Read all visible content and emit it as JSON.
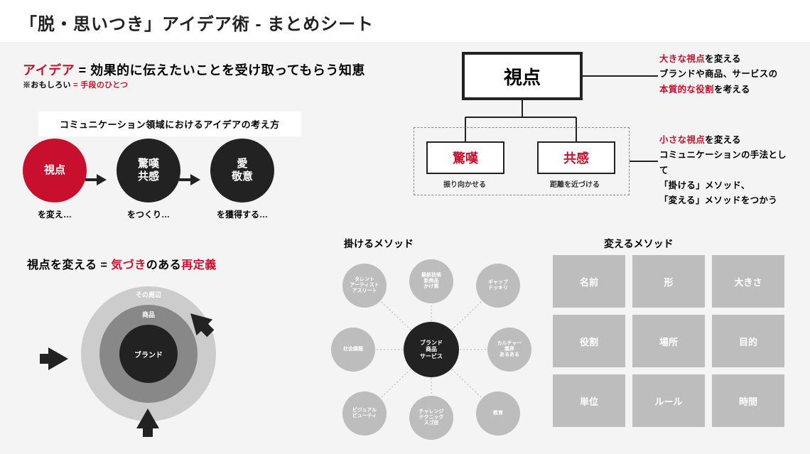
{
  "title": "「脱・思いつき」アイデア術 - まとめシート",
  "def1": {
    "a": "アイデア",
    "b": " = 効果的に",
    "c": "伝えたいことを受け取ってもらう",
    "d": "知恵"
  },
  "def2": {
    "a": "※おもしろい",
    "b": " = 手段のひとつ"
  },
  "comms_label": "コミュニケーション領域におけるアイデアの考え方",
  "flow": {
    "c1": "視点",
    "c1_cap": "を変え…",
    "c2a": "驚嘆",
    "c2b": "共感",
    "c2_cap": "をつくり…",
    "c3a": "愛",
    "c3b": "敬意",
    "c3_cap": "を獲得する…"
  },
  "redef": {
    "a": "視点を変える = ",
    "b": "気づき",
    "c": "のある",
    "d": "再定義"
  },
  "conc": {
    "outer": "その周辺",
    "mid": "商品",
    "inner": "ブランド"
  },
  "tree": {
    "top": "視点",
    "sub1": "驚嘆",
    "sub1_cap": "振り向かせる",
    "sub2": "共感",
    "sub2_cap": "距離を近づける",
    "ann1": {
      "l1a": "大きな視点",
      "l1b": "を変える",
      "l2": "ブランドや商品、サービスの",
      "l3a": "本質的な役割",
      "l3b": "を考える"
    },
    "ann2": {
      "l1a": "小さな視点",
      "l1b": "を変える",
      "l2a": "コミュニケーションの",
      "l2b": "手法",
      "l2c": "として",
      "l3": "「掛ける」メソッド、",
      "l4": "「変える」メソッドをつかう"
    }
  },
  "method_headers": {
    "h1": "掛けるメソッド",
    "h2": "変えるメソッド"
  },
  "bubbles": {
    "center": "ブランド\n商品\nサービス",
    "b1": "タレント\nアーティスト\nアスリート",
    "b2": "最新技術\n新商品\nかけ算",
    "b3": "ギャップ\nドッキリ",
    "b4": "社会課題",
    "b5": "カルチャー\n業界\nあるある",
    "b6": "ビジュアル\nビューティ",
    "b7": "チャレンジ\nテクニック\nスゴ技",
    "b8": "教育"
  },
  "grid": [
    "名前",
    "形",
    "大きさ",
    "役割",
    "場所",
    "目的",
    "単位",
    "ルール",
    "時間"
  ],
  "colors": {
    "red": "#c8102e",
    "dark": "#222222",
    "grey": "#bdbdbd",
    "midgrey": "#888888",
    "lightgrey": "#cccccc",
    "bg": "#f4f4f4"
  }
}
